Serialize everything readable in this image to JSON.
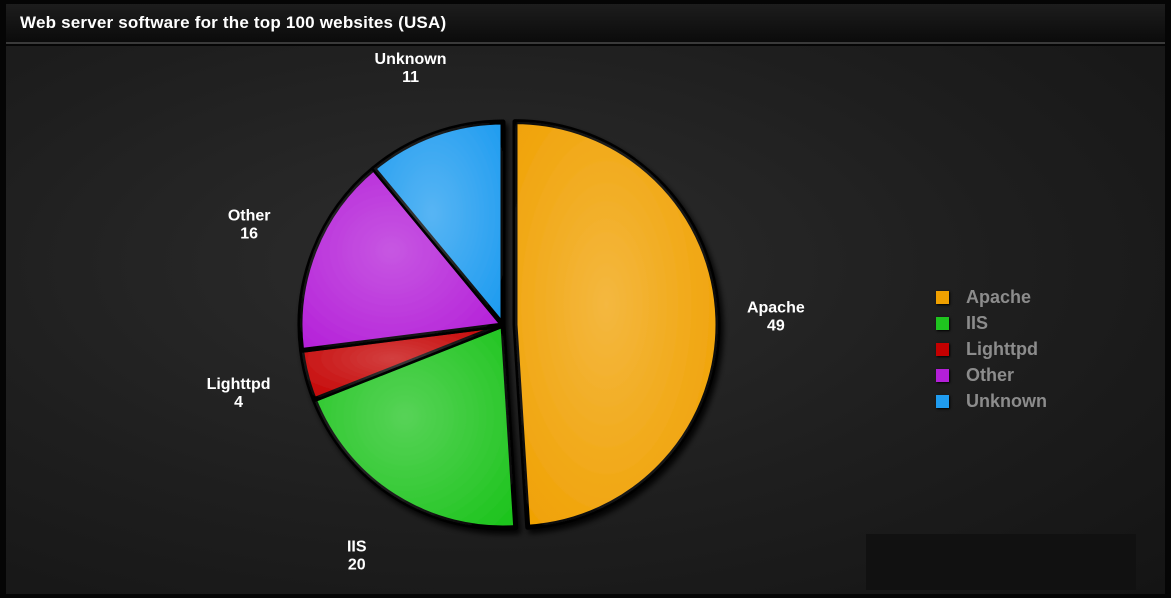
{
  "chart_title": "Web server software for the top 100 websites (USA)",
  "chart_data": {
    "type": "pie",
    "title": "Web server software for the top 100 websites (USA)",
    "categories": [
      "Apache",
      "IIS",
      "Lighttpd",
      "Other",
      "Unknown"
    ],
    "values": [
      49,
      20,
      4,
      16,
      11
    ],
    "colors": [
      "#f0a000",
      "#1fc41f",
      "#c40000",
      "#b41fd8",
      "#1f9cf0"
    ],
    "legend": {
      "position": "right",
      "items": [
        "Apache",
        "IIS",
        "Lighttpd",
        "Other",
        "Unknown"
      ]
    },
    "exploded": "Apache"
  }
}
